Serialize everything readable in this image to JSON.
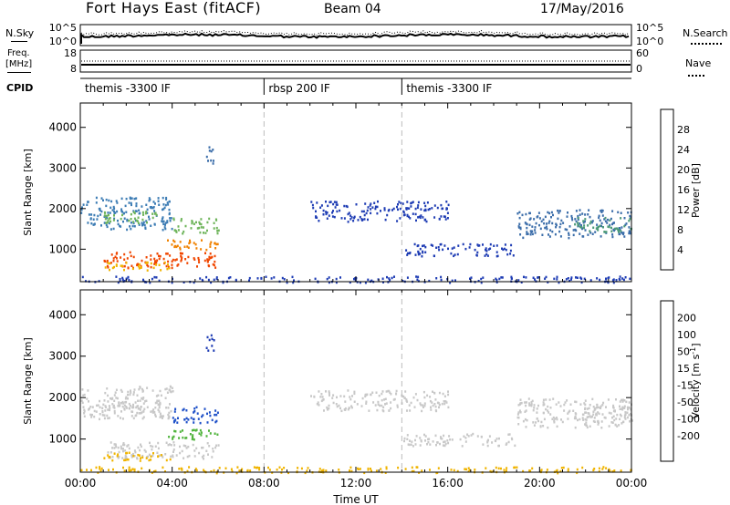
{
  "header": {
    "title": "Fort Hays East (fitACF)",
    "beam": "Beam 04",
    "date": "17/May/2016"
  },
  "strip_labels": {
    "nsky": "N.Sky",
    "freq_line1": "Freq.",
    "freq_line2": "[MHz]",
    "cpid": "CPID",
    "nsearch": "N.Search",
    "nave": "Nave",
    "nsky_ticks": [
      "10^5",
      "10^0"
    ],
    "nsearch_ticks": [
      "10^5",
      "10^0"
    ],
    "freq_ticks": [
      "18",
      "8"
    ],
    "nave_ticks": [
      "60",
      "0"
    ]
  },
  "cpid_segments": [
    {
      "label": "themis -3300 IF",
      "start_hour": 0
    },
    {
      "label": "rbsp 200 IF",
      "start_hour": 8
    },
    {
      "label": "themis -3300 IF",
      "start_hour": 14
    }
  ],
  "chart_data": [
    {
      "type": "heatmap",
      "name": "power",
      "ylabel": "Slant Range [km]",
      "xlabel": "",
      "x_range_hours": [
        0,
        24
      ],
      "ylim": [
        200,
        4600
      ],
      "yticks": [
        1000,
        2000,
        3000,
        4000
      ],
      "xtick_labels": [
        "00:00",
        "04:00",
        "08:00",
        "12:00",
        "16:00",
        "20:00",
        "00:00"
      ],
      "colorbar": {
        "label": "Power [dB]",
        "ticks": [
          "4",
          "8",
          "12",
          "16",
          "20",
          "24",
          "28"
        ],
        "colors": [
          "#0000e6",
          "#1e3cb4",
          "#3c6eaa",
          "#4c9a78",
          "#6eb45a",
          "#c8c800",
          "#f0b400",
          "#f08200",
          "#f04600",
          "#e60000"
        ]
      }
    },
    {
      "type": "heatmap",
      "name": "velocity",
      "ylabel": "Slant Range [km]",
      "xlabel": "Time UT",
      "x_range_hours": [
        0,
        24
      ],
      "ylim": [
        200,
        4600
      ],
      "yticks": [
        1000,
        2000,
        3000,
        4000
      ],
      "xtick_labels": [
        "00:00",
        "04:00",
        "08:00",
        "12:00",
        "16:00",
        "20:00",
        "00:00"
      ],
      "colorbar": {
        "label": "Velocity [m s",
        "label_sup": "-1",
        "label_end": "]",
        "ticks": [
          "200",
          "100",
          "50",
          "15",
          "-15",
          "-50",
          "-100",
          "-200"
        ],
        "colors": [
          "#1432b4",
          "#2864c8",
          "#3c8c78",
          "#50b43c",
          "#96d23c",
          "#c8c8c8",
          "#c8c8c8",
          "#f0b400",
          "#f08c00",
          "#f05000",
          "#e60000"
        ]
      }
    }
  ],
  "echo_regions": [
    {
      "h0": 0.0,
      "h1": 4.0,
      "r0": 1500,
      "r1": 2300,
      "pc": "#3c7cb4",
      "vc": "#c8c8c8"
    },
    {
      "h0": 1.0,
      "h1": 3.5,
      "r0": 1650,
      "r1": 1950,
      "pc": "#6eb45a",
      "vc": "#c8c8c8"
    },
    {
      "h0": 3.6,
      "h1": 6.0,
      "r0": 1000,
      "r1": 1250,
      "pc": "#f08200",
      "vc": "#50b43c"
    },
    {
      "h0": 4.0,
      "h1": 6.0,
      "r0": 1400,
      "r1": 1800,
      "pc": "#6eb45a",
      "vc": "#1e50c8"
    },
    {
      "h0": 1.0,
      "h1": 6.0,
      "r0": 550,
      "r1": 950,
      "pc": "#f04600",
      "vc": "#c8c8c8"
    },
    {
      "h0": 1.0,
      "h1": 4.0,
      "r0": 500,
      "r1": 700,
      "pc": "#f0b400",
      "vc": "#f0b400"
    },
    {
      "h0": 5.4,
      "h1": 5.8,
      "r0": 3100,
      "r1": 3550,
      "pc": "#3c6eaa",
      "vc": "#1e3cb4"
    },
    {
      "h0": 10.0,
      "h1": 16.0,
      "r0": 1700,
      "r1": 2200,
      "pc": "#1e3cb4",
      "vc": "#c8c8c8"
    },
    {
      "h0": 14.0,
      "h1": 19.0,
      "r0": 850,
      "r1": 1150,
      "pc": "#1e3cb4",
      "vc": "#c8c8c8"
    },
    {
      "h0": 19.0,
      "h1": 24.0,
      "r0": 1300,
      "r1": 2000,
      "pc": "#3c6eaa",
      "vc": "#c8c8c8"
    },
    {
      "h0": 21.5,
      "h1": 24.0,
      "r0": 1450,
      "r1": 1800,
      "pc": "#4c9a78",
      "vc": "#c8c8c8"
    },
    {
      "h0": 0.0,
      "h1": 24.0,
      "r0": 200,
      "r1": 350,
      "pc": "#1e3cb4",
      "vc": "#f0b400"
    }
  ]
}
